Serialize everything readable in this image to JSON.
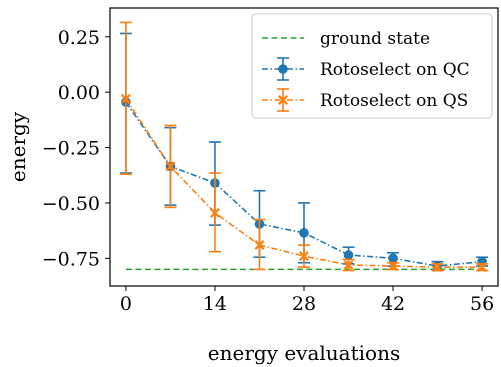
{
  "chart_data": {
    "type": "line",
    "title": "",
    "xlabel": "energy evaluations",
    "ylabel": "energy",
    "xlim": [
      -2.5,
      58.5
    ],
    "ylim": [
      -0.875,
      0.38
    ],
    "xticks": [
      0,
      14,
      28,
      42,
      56
    ],
    "xtick_labels": [
      "0",
      "14",
      "28",
      "42",
      "56"
    ],
    "yticks": [
      0.25,
      0.0,
      -0.25,
      -0.5,
      -0.75
    ],
    "ytick_labels": [
      "0.25",
      "0.00",
      "−0.25",
      "−0.50",
      "−0.75"
    ],
    "grid": false,
    "legend_position": "top-right",
    "legend": [
      "ground state",
      "Rotoselect on QC",
      "Rotoselect on QS"
    ],
    "reference_line": {
      "name": "ground state",
      "y": -0.8,
      "x_range": [
        0,
        56
      ],
      "color": "#2ca02c",
      "style": "dashed"
    },
    "series": [
      {
        "name": "Rotoselect on QC",
        "color": "#1f77b4",
        "marker": "circle",
        "x": [
          0,
          7,
          14,
          21,
          28,
          35,
          42,
          49,
          56
        ],
        "y": [
          -0.045,
          -0.335,
          -0.41,
          -0.595,
          -0.635,
          -0.735,
          -0.75,
          -0.785,
          -0.765
        ],
        "err_low": [
          -0.365,
          -0.51,
          -0.6,
          -0.745,
          -0.77,
          -0.775,
          -0.785,
          -0.805,
          -0.785
        ],
        "err_high": [
          0.265,
          -0.16,
          -0.225,
          -0.445,
          -0.5,
          -0.7,
          -0.725,
          -0.765,
          -0.745
        ]
      },
      {
        "name": "Rotoselect on QS",
        "color": "#ff7f0e",
        "marker": "x",
        "x": [
          0,
          7,
          14,
          21,
          28,
          35,
          42,
          49,
          56
        ],
        "y": [
          -0.03,
          -0.335,
          -0.545,
          -0.69,
          -0.74,
          -0.78,
          -0.785,
          -0.79,
          -0.79
        ],
        "err_low": [
          -0.37,
          -0.52,
          -0.72,
          -0.8,
          -0.79,
          -0.805,
          -0.8,
          -0.805,
          -0.805
        ],
        "err_high": [
          0.315,
          -0.15,
          -0.365,
          -0.575,
          -0.69,
          -0.755,
          -0.77,
          -0.775,
          -0.775
        ]
      }
    ]
  }
}
